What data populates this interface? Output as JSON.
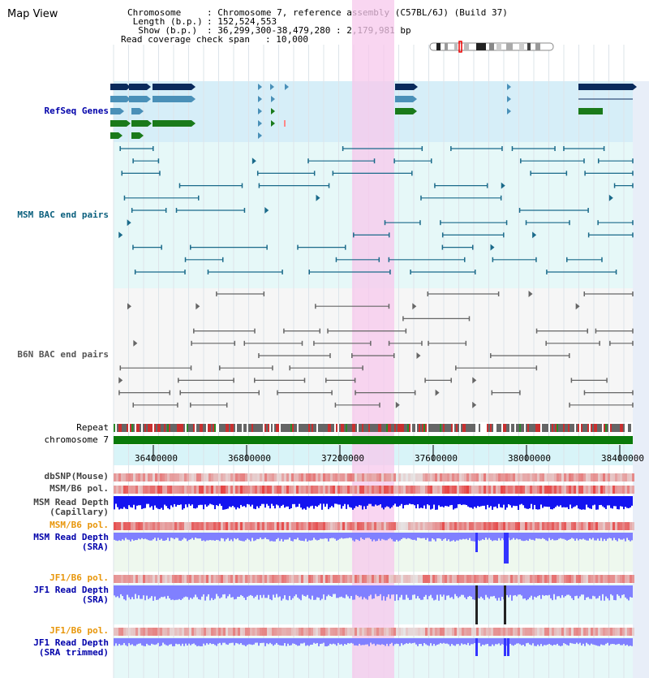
{
  "title": "Map View",
  "info": {
    "chromosome_label": "Chromosome",
    "chromosome_value": "Chromosome 7, reference assembly (C57BL/6J) (Build 37)",
    "length_label": "Length (b.p.)",
    "length_value": "152,524,553",
    "show_label": "Show (b.p.)",
    "show_value": "36,299,300-38,479,280 : 2,179,981 bp",
    "coverage_label": "Read coverage check span",
    "coverage_value": "10,000"
  },
  "tracks": {
    "refseq": "RefSeq Genes",
    "msm_bac": "MSM BAC end pairs",
    "b6n_bac": "B6N BAC end pairs",
    "repeat": "Repeat",
    "chromosome": "chromosome 7",
    "dbsnp": "dbSNP(Mouse)",
    "msm_b6_pol_1": "MSM/B6 pol.",
    "msm_depth_cap_1": "MSM Read Depth",
    "msm_depth_cap_2": "(Capillary)",
    "msm_b6_pol_2": "MSM/B6 pol.",
    "msm_depth_sra_1": "MSM Read Depth",
    "msm_depth_sra_2": "(SRA)",
    "jf1_b6_pol_1": "JF1/B6 pol.",
    "jf1_depth_sra_1": "JF1 Read Depth",
    "jf1_depth_sra_2": "(SRA)",
    "jf1_b6_pol_2": "JF1/B6 pol.",
    "jf1_depth_trim_1": "JF1 Read Depth",
    "jf1_depth_trim_2": "(SRA trimmed)"
  },
  "axis": {
    "ticks": [
      "36400000",
      "36800000",
      "37200000",
      "37600000",
      "38000000",
      "38400000"
    ]
  },
  "colors": {
    "gene_dark": "#0a2a5c",
    "gene_mid": "#4a90b8",
    "gene_green": "#1a7a1a",
    "bac_teal": "#1a6a8a",
    "bac_gray": "#666666",
    "highlight": "#f7c8ec",
    "depth_blue": "#1414f0",
    "depth_light": "#8080ff",
    "snp_red": "#e83030",
    "chrom_green": "#0a7a0a"
  }
}
